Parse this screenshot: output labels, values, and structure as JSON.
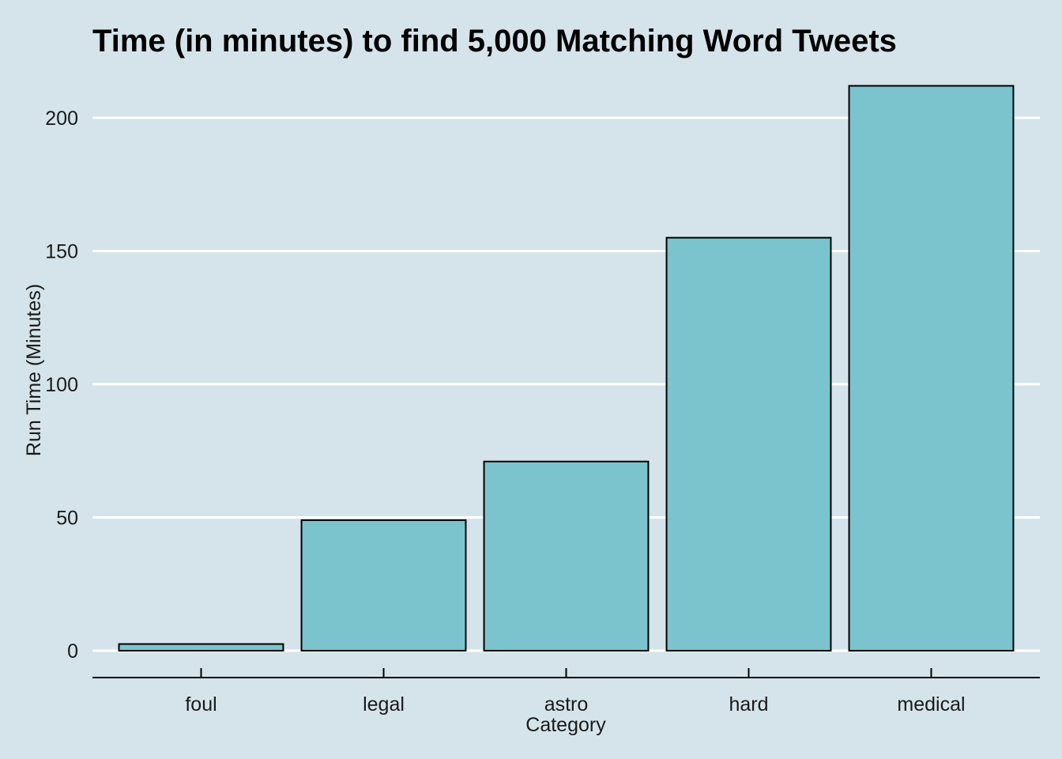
{
  "chart_data": {
    "type": "bar",
    "title": "Time (in minutes) to find 5,000 Matching Word Tweets",
    "xlabel": "Category",
    "ylabel": "Run Time (Minutes)",
    "categories": [
      "foul",
      "legal",
      "astro",
      "hard",
      "medical"
    ],
    "values": [
      2.5,
      49,
      71,
      155,
      212
    ],
    "ylim": [
      0,
      215
    ],
    "yticks": [
      0,
      50,
      100,
      150,
      200
    ],
    "grid": "horizontal",
    "colors": {
      "background": "#d5e4eb",
      "bar_fill": "#7bc4cd",
      "bar_stroke": "#000000",
      "grid": "#ffffff"
    }
  }
}
